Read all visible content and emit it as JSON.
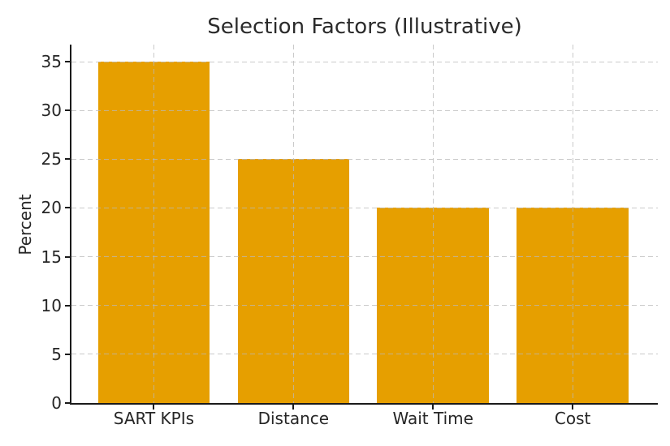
{
  "figure": {
    "background": "#ffffff",
    "text_color": "#262626",
    "spine_color": "#1a1a1a",
    "grid_color": "#b9b9b9"
  },
  "chart_data": {
    "type": "bar",
    "title": "Selection Factors (Illustrative)",
    "xlabel": "",
    "ylabel": "Percent",
    "categories": [
      "SART KPIs",
      "Distance",
      "Wait Time",
      "Cost"
    ],
    "values": [
      35,
      25,
      20,
      20
    ],
    "yticks": [
      0,
      5,
      10,
      15,
      20,
      25,
      30,
      35
    ],
    "ylim": [
      0,
      36.75
    ],
    "bar_color": "#E69F00",
    "grid": "both-dashed-drawn-over-bars",
    "legend_position": "none",
    "spines": [
      "left",
      "bottom"
    ]
  }
}
